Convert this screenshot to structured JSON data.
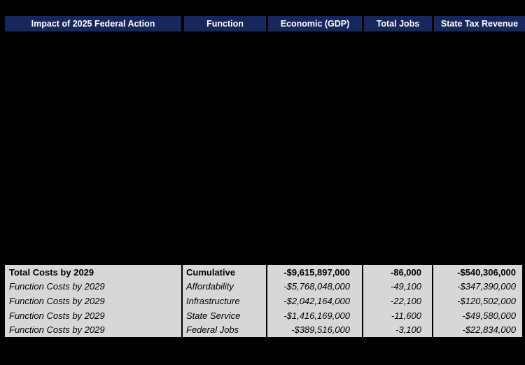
{
  "chart_data": {
    "type": "table",
    "title": "Impact of 2025 Federal Action",
    "columns": [
      "Impact of 2025 Federal Action",
      "Function",
      "Economic (GDP)",
      "Total Jobs",
      "State Tax Revenue"
    ],
    "rows": [
      {
        "impact": "Total Costs by 2029",
        "function": "Cumulative",
        "economic_gdp": "-$9,615,897,000",
        "total_jobs": "-86,000",
        "state_tax_revenue": "-$540,306,000",
        "emphasis": "bold",
        "values": {
          "economic_gdp": -9615897000,
          "total_jobs": -86000,
          "state_tax_revenue": -540306000
        }
      },
      {
        "impact": "Function Costs by 2029",
        "function": "Affordability",
        "economic_gdp": "-$5,768,048,000",
        "total_jobs": "-49,100",
        "state_tax_revenue": "-$347,390,000",
        "emphasis": "italic",
        "values": {
          "economic_gdp": -5768048000,
          "total_jobs": -49100,
          "state_tax_revenue": -347390000
        }
      },
      {
        "impact": "Function Costs by 2029",
        "function": "Infrastructure",
        "economic_gdp": "-$2,042,164,000",
        "total_jobs": "-22,100",
        "state_tax_revenue": "-$120,502,000",
        "emphasis": "italic",
        "values": {
          "economic_gdp": -2042164000,
          "total_jobs": -22100,
          "state_tax_revenue": -120502000
        }
      },
      {
        "impact": "Function Costs by 2029",
        "function": "State Service",
        "economic_gdp": "-$1,416,169,000",
        "total_jobs": "-11,600",
        "state_tax_revenue": "-$49,580,000",
        "emphasis": "italic",
        "values": {
          "economic_gdp": -1416169000,
          "total_jobs": -11600,
          "state_tax_revenue": -49580000
        }
      },
      {
        "impact": "Function Costs by 2029",
        "function": "Federal Jobs",
        "economic_gdp": "-$389,516,000",
        "total_jobs": "-3,100",
        "state_tax_revenue": "-$22,834,000",
        "emphasis": "italic",
        "values": {
          "economic_gdp": -389516000,
          "total_jobs": -3100,
          "state_tax_revenue": -22834000
        }
      }
    ],
    "layout": {
      "legend": "none",
      "grid": "column-dividers-only"
    }
  },
  "colors": {
    "background": "#000000",
    "header_bg": "#15275c",
    "header_text": "#ffffff",
    "row_bg": "#d7d7d7",
    "body_text": "#000000",
    "divider": "#000000"
  }
}
